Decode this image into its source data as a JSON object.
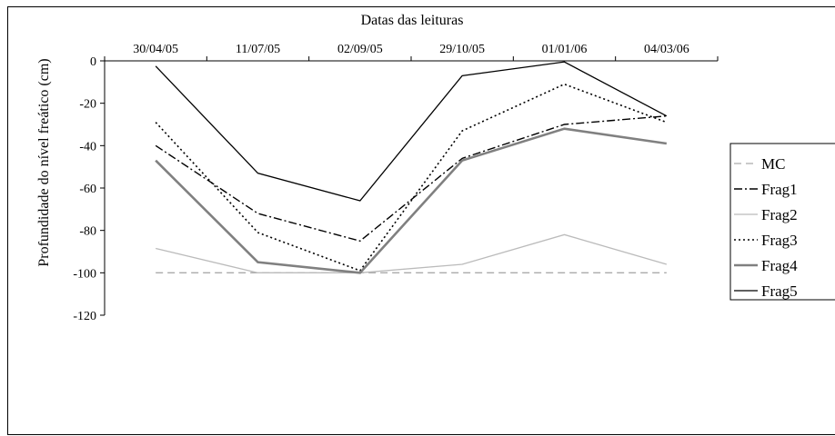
{
  "chart_data": {
    "type": "line",
    "xlabel": "Datas das leituras",
    "ylabel": "Profundidade do nível freático (cm)",
    "categories": [
      "30/04/05",
      "11/07/05",
      "02/09/05",
      "29/10/05",
      "01/01/06",
      "04/03/06"
    ],
    "ylim": [
      -120,
      0
    ],
    "yticks": [
      0,
      -20,
      -40,
      -60,
      -80,
      -100,
      -120
    ],
    "x_axis_position": "top",
    "grid": false,
    "legend": "right",
    "series": [
      {
        "name": "MC",
        "values": [
          -100,
          -100,
          -100,
          -100,
          -100,
          -100
        ],
        "color": "#aaaaaa",
        "dash": "dashed"
      },
      {
        "name": "Frag1",
        "values": [
          -40,
          -72,
          -85,
          -46,
          -30,
          -26
        ],
        "color": "#000000",
        "dash": "dashdot"
      },
      {
        "name": "Frag2",
        "values": [
          -88.5,
          -100,
          -100,
          -96,
          -82,
          -96
        ],
        "color": "#bbbbbb",
        "dash": "solid"
      },
      {
        "name": "Frag3",
        "values": [
          -29,
          -81,
          -99,
          -33,
          -11,
          -29
        ],
        "color": "#000000",
        "dash": "dotted"
      },
      {
        "name": "Frag4",
        "values": [
          -47,
          -95,
          -100,
          -47,
          -32,
          -39
        ],
        "color": "#808080",
        "dash": "thick"
      },
      {
        "name": "Frag5",
        "values": [
          -2.5,
          -53,
          -66,
          -7,
          -0.5,
          -26
        ],
        "color": "#000000",
        "dash": "solid"
      }
    ]
  }
}
